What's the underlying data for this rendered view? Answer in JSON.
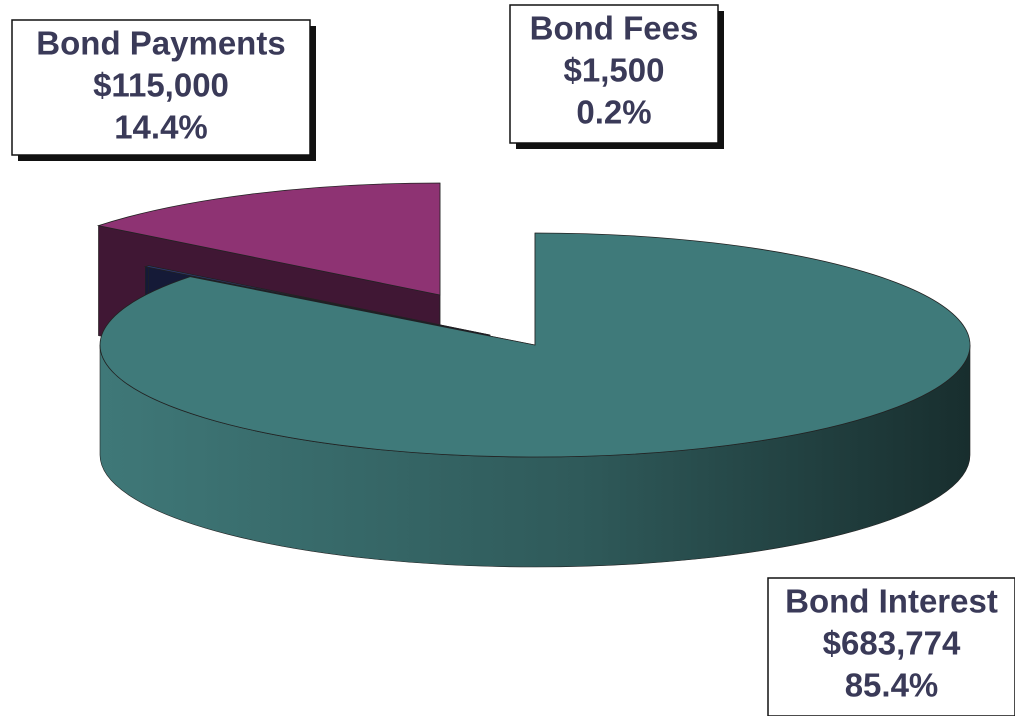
{
  "chart_data": {
    "type": "pie",
    "categories": [
      "Bond Interest",
      "Bond Fees",
      "Bond Payments"
    ],
    "values": [
      683774,
      1500,
      115000
    ],
    "value_labels": [
      "$683,774",
      "$1,500",
      "$115,000"
    ],
    "percents": [
      85.4,
      0.2,
      14.4
    ],
    "percent_labels": [
      "85.4%",
      "0.2%",
      "14.4%"
    ],
    "colors": [
      "#3f7a7a",
      "#2e3a7a",
      "#8e3373"
    ]
  }
}
